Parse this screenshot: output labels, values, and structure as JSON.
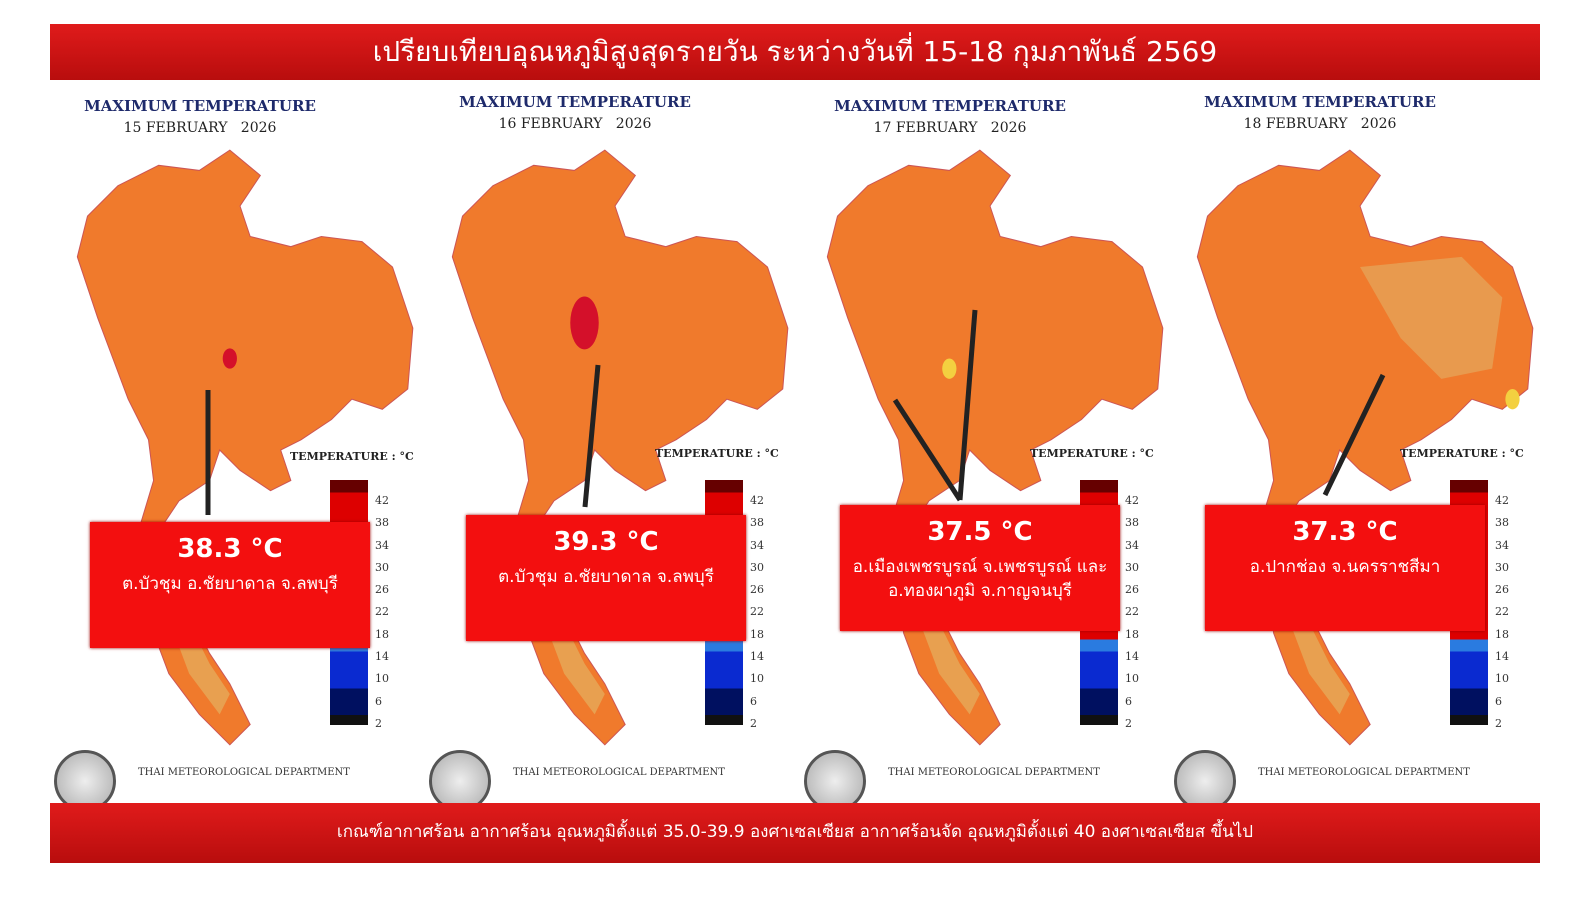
{
  "header": {
    "title": "เปรียบเทียบอุณหภูมิสูงสุดรายวัน ระหว่างวันที่ 15-18 กุมภาพันธ์ 2569"
  },
  "footer": {
    "text": "เกณฑ์อากาศร้อน อากาศร้อน อุณหภูมิตั้งแต่ 35.0-39.9 องศาเซลเซียส อากาศร้อนจัด อุณหภูมิตั้งแต่ 40 องศาเซลเซียส ขึ้นไป"
  },
  "colors": {
    "banner": "#d01414",
    "callout": "#f30f0f",
    "map": "#f07a2c",
    "hot": "#d4102a",
    "mild": "#e8a050"
  },
  "legend": {
    "title": "TEMPERATURE : °C",
    "ticks": [
      "42",
      "38",
      "34",
      "30",
      "26",
      "22",
      "18",
      "14",
      "10",
      "6",
      "2"
    ]
  },
  "panels": [
    {
      "title": "MAXIMUM TEMPERATURE",
      "date": "15 FEBRUARY   2026",
      "value": "38.3 °C",
      "place": "ต.บัวชุม อ.ชัยบาดาล จ.ลพบุรี",
      "department": "THAI METEOROLOGICAL DEPARTMENT"
    },
    {
      "title": "MAXIMUM TEMPERATURE",
      "date": "16 FEBRUARY   2026",
      "value": "39.3 °C",
      "place": "ต.บัวชุม อ.ชัยบาดาล จ.ลพบุรี",
      "department": "THAI METEOROLOGICAL DEPARTMENT"
    },
    {
      "title": "MAXIMUM TEMPERATURE",
      "date": "17 FEBRUARY   2026",
      "value": "37.5 °C",
      "place": "อ.เมืองเพชรบูรณ์ จ.เพชรบูรณ์ และ อ.ทองผาภูมิ จ.กาญจนบุรี",
      "department": "THAI METEOROLOGICAL DEPARTMENT"
    },
    {
      "title": "MAXIMUM TEMPERATURE",
      "date": "18 FEBRUARY   2026",
      "value": "37.3 °C",
      "place": "อ.ปากช่อง จ.นครราชสีมา",
      "department": "THAI METEOROLOGICAL DEPARTMENT"
    }
  ]
}
